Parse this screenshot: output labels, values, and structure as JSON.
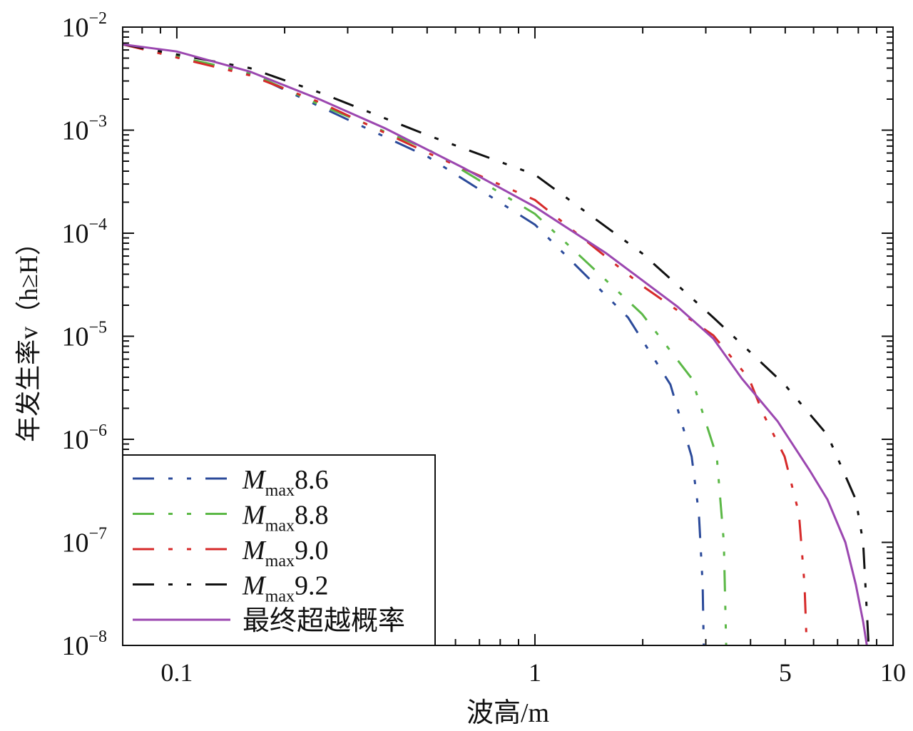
{
  "chart_data": {
    "type": "line",
    "title": "",
    "xlabel": "波高/m",
    "ylabel": "年发生率v（h≥H）",
    "xscale": "log",
    "yscale": "log",
    "xlim": [
      0.0706,
      10
    ],
    "ylim": [
      1e-08,
      0.01
    ],
    "x_ticks": [
      {
        "value": 0.1,
        "label": "0.1"
      },
      {
        "value": 1,
        "label": "1"
      },
      {
        "value": 5,
        "label": "5"
      },
      {
        "value": 10,
        "label": "10"
      }
    ],
    "y_ticks": [
      {
        "value": 0.01,
        "base": "10",
        "exp": "−2"
      },
      {
        "value": 0.001,
        "base": "10",
        "exp": "−3"
      },
      {
        "value": 0.0001,
        "base": "10",
        "exp": "−4"
      },
      {
        "value": 1e-05,
        "base": "10",
        "exp": "−5"
      },
      {
        "value": 1e-06,
        "base": "10",
        "exp": "−6"
      },
      {
        "value": 1e-07,
        "base": "10",
        "exp": "−7"
      },
      {
        "value": 1e-08,
        "base": "10",
        "exp": "−8"
      }
    ],
    "grid": false,
    "legend_position": "bottom-left",
    "series": [
      {
        "name": "Mmax8.6",
        "name_main": "M",
        "name_sub": "max",
        "name_val": "8.6",
        "color": "#2b4a9a",
        "style": "dash-dot-dot",
        "x": [
          0.0706,
          0.16,
          0.252,
          0.503,
          1,
          1.82,
          2.39,
          2.74,
          2.87,
          2.94,
          2.96
        ],
        "y": [
          0.0068,
          0.00355,
          0.00168,
          0.00055,
          0.000121,
          1.52e-05,
          3.4e-06,
          6.8e-07,
          1.9e-07,
          3.9e-08,
          1e-08
        ]
      },
      {
        "name": "Mmax8.8",
        "name_main": "M",
        "name_sub": "max",
        "name_val": "8.8",
        "color": "#5bb846",
        "style": "dash-dot-dot",
        "x": [
          0.0706,
          0.16,
          0.252,
          0.503,
          1,
          1.99,
          2.74,
          3.22,
          3.37,
          3.42
        ],
        "y": [
          0.0068,
          0.0036,
          0.00175,
          0.00065,
          0.000154,
          1.65e-05,
          3.9e-06,
          6.8e-07,
          1e-07,
          1e-08
        ]
      },
      {
        "name": "Mmax9.0",
        "name_main": "M",
        "name_sub": "max",
        "name_val": "9.0",
        "color": "#d62a2a",
        "style": "dash-dot-dot",
        "x": [
          0.0706,
          0.16,
          0.252,
          0.503,
          1,
          1.99,
          3.15,
          3.96,
          4.34,
          4.98,
          5.46,
          5.66,
          5.74
        ],
        "y": [
          0.0068,
          0.0034,
          0.00185,
          0.0006,
          0.00021,
          3.1e-05,
          1.02e-05,
          3.9e-06,
          1.77e-06,
          6.8e-07,
          1.9e-07,
          3.9e-08,
          1e-08
        ]
      },
      {
        "name": "Mmax9.2",
        "name_main": "M",
        "name_sub": "max",
        "name_val": "9.2",
        "color": "#111111",
        "style": "dash-dot-dot",
        "x": [
          0.0706,
          0.16,
          0.252,
          0.503,
          1,
          1.99,
          3.15,
          4.98,
          6.56,
          7.87,
          8.25,
          8.55
        ],
        "y": [
          0.0068,
          0.004,
          0.0023,
          0.00089,
          0.00037,
          6.4e-05,
          1.52e-05,
          3.4e-06,
          1.1e-06,
          2.6e-07,
          1e-07,
          1e-08
        ]
      },
      {
        "name": "最终超越概率",
        "color": "#9b47b0",
        "style": "solid",
        "x": [
          0.0706,
          0.1,
          0.16,
          0.252,
          0.382,
          0.632,
          1,
          1.58,
          2.5,
          3.15,
          3.78,
          4.76,
          5.85,
          6.56,
          7.36,
          7.87,
          8.25,
          8.45
        ],
        "y": [
          0.0068,
          0.0058,
          0.0037,
          0.00197,
          0.00104,
          0.00043,
          0.00018,
          6.4e-05,
          1.94e-05,
          9.5e-06,
          3.9e-06,
          1.5e-06,
          5e-07,
          2.6e-07,
          1e-07,
          3.9e-08,
          1.7e-08,
          1e-08
        ]
      }
    ]
  }
}
